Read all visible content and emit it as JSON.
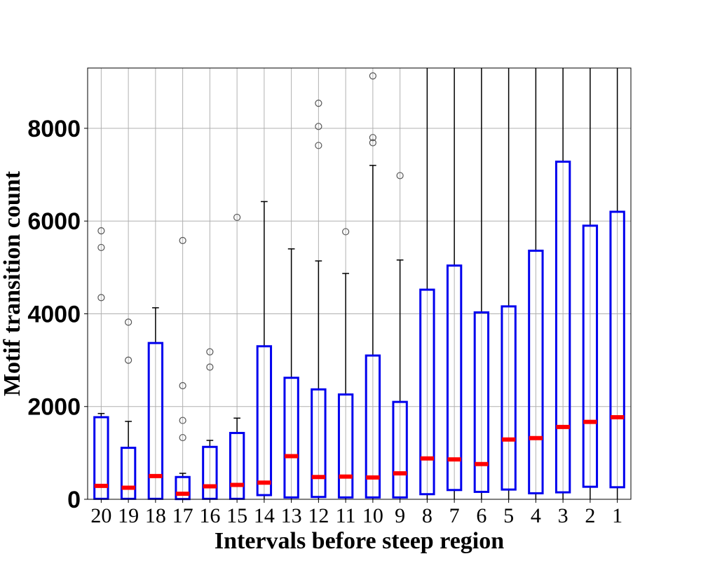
{
  "chart_data": {
    "type": "boxplot",
    "xlabel": "Intervals before steep region",
    "ylabel": "Motif transition count",
    "ylim": [
      0,
      9300
    ],
    "yticks": [
      0,
      2000,
      4000,
      6000,
      8000
    ],
    "grid": true,
    "colors": {
      "box": "#0000ee",
      "median": "#ff0000",
      "whisker": "#000000",
      "outlier": "#555555",
      "grid": "#b0b0b0"
    },
    "categories": [
      "20",
      "19",
      "18",
      "17",
      "16",
      "15",
      "14",
      "13",
      "12",
      "11",
      "10",
      "9",
      "8",
      "7",
      "6",
      "5",
      "4",
      "3",
      "2",
      "1"
    ],
    "boxes": [
      {
        "label": "20",
        "whisker_low": 0,
        "q1": 10,
        "median": 290,
        "q3": 1770,
        "whisker_high": 1850,
        "outliers": [
          4350,
          5430,
          5790
        ]
      },
      {
        "label": "19",
        "whisker_low": 0,
        "q1": 10,
        "median": 250,
        "q3": 1110,
        "whisker_high": 1680,
        "outliers": [
          3000,
          3820
        ]
      },
      {
        "label": "18",
        "whisker_low": 0,
        "q1": 10,
        "median": 500,
        "q3": 3370,
        "whisker_high": 4130,
        "outliers": []
      },
      {
        "label": "17",
        "whisker_low": 0,
        "q1": 5,
        "median": 120,
        "q3": 480,
        "whisker_high": 560,
        "outliers": [
          1330,
          1700,
          2450,
          5580
        ]
      },
      {
        "label": "16",
        "whisker_low": 0,
        "q1": 10,
        "median": 280,
        "q3": 1130,
        "whisker_high": 1270,
        "outliers": [
          2850,
          3180
        ]
      },
      {
        "label": "15",
        "whisker_low": 0,
        "q1": 10,
        "median": 310,
        "q3": 1430,
        "whisker_high": 1750,
        "outliers": [
          6080
        ]
      },
      {
        "label": "14",
        "whisker_low": 0,
        "q1": 90,
        "median": 360,
        "q3": 3300,
        "whisker_high": 6420,
        "outliers": []
      },
      {
        "label": "13",
        "whisker_low": 0,
        "q1": 40,
        "median": 930,
        "q3": 2620,
        "whisker_high": 5400,
        "outliers": []
      },
      {
        "label": "12",
        "whisker_low": 0,
        "q1": 50,
        "median": 480,
        "q3": 2370,
        "whisker_high": 5140,
        "outliers": [
          7630,
          8040,
          8540
        ]
      },
      {
        "label": "11",
        "whisker_low": 0,
        "q1": 40,
        "median": 490,
        "q3": 2260,
        "whisker_high": 4870,
        "outliers": [
          5770
        ]
      },
      {
        "label": "10",
        "whisker_low": 0,
        "q1": 40,
        "median": 470,
        "q3": 3100,
        "whisker_high": 7200,
        "outliers": [
          7690,
          7800,
          9130
        ]
      },
      {
        "label": "9",
        "whisker_low": 0,
        "q1": 40,
        "median": 560,
        "q3": 2100,
        "whisker_high": 5160,
        "outliers": [
          6980
        ]
      },
      {
        "label": "8",
        "whisker_low": 0,
        "q1": 110,
        "median": 880,
        "q3": 4520,
        "whisker_high": 9300,
        "outliers": []
      },
      {
        "label": "7",
        "whisker_low": 0,
        "q1": 200,
        "median": 860,
        "q3": 5040,
        "whisker_high": 9300,
        "outliers": []
      },
      {
        "label": "6",
        "whisker_low": 0,
        "q1": 160,
        "median": 760,
        "q3": 4030,
        "whisker_high": 9300,
        "outliers": []
      },
      {
        "label": "5",
        "whisker_low": 0,
        "q1": 210,
        "median": 1290,
        "q3": 4160,
        "whisker_high": 9300,
        "outliers": []
      },
      {
        "label": "4",
        "whisker_low": 0,
        "q1": 130,
        "median": 1320,
        "q3": 5360,
        "whisker_high": 9300,
        "outliers": []
      },
      {
        "label": "3",
        "whisker_low": 0,
        "q1": 150,
        "median": 1560,
        "q3": 7280,
        "whisker_high": 9300,
        "outliers": []
      },
      {
        "label": "2",
        "whisker_low": 0,
        "q1": 270,
        "median": 1670,
        "q3": 5900,
        "whisker_high": 9300,
        "outliers": []
      },
      {
        "label": "1",
        "whisker_low": 0,
        "q1": 260,
        "median": 1770,
        "q3": 6200,
        "whisker_high": 9300,
        "outliers": []
      }
    ]
  }
}
